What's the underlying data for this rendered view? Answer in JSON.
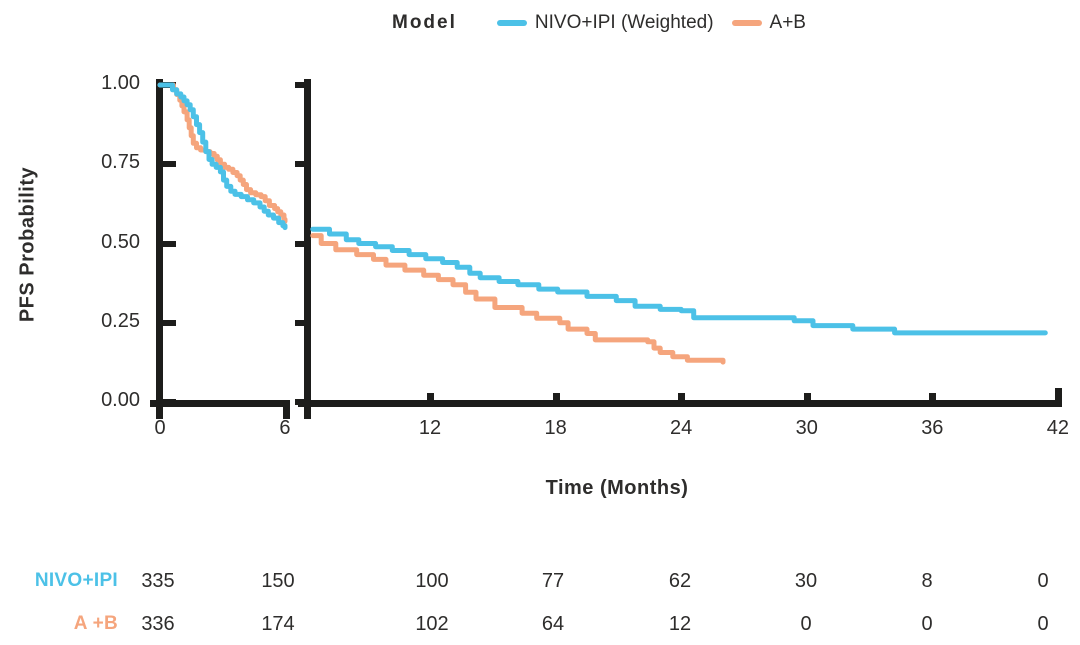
{
  "figure": {
    "legend": {
      "title": "Model",
      "items": [
        {
          "key": "nivo-ipi-weighted",
          "label": "NIVO+IPI (Weighted)",
          "color": "#4cc1e7"
        },
        {
          "key": "a-b",
          "label": "A+B",
          "color": "#f5a57d"
        }
      ]
    },
    "y_axis_title": "PFS Probability",
    "x_axis_title": "Time (Months)"
  },
  "chart_data": {
    "type": "line",
    "subtype": "kaplan-meier step curves with broken x axis",
    "title": "",
    "xlabel": "Time (Months)",
    "ylabel": "PFS Probability",
    "ylim": [
      0,
      1
    ],
    "y_ticks": [
      "1.00",
      "0.75",
      "0.50",
      "0.25",
      "0.00"
    ],
    "x_break_between_months": [
      6,
      6.4
    ],
    "x_ticks_panel1": [
      0,
      6
    ],
    "x_ticks_panel2": [
      12,
      18,
      24,
      30,
      36,
      42
    ],
    "grid": false,
    "legend_position": "top-center",
    "series": [
      {
        "name": "NIVO+IPI (Weighted)",
        "key": "nivo-ipi-weighted",
        "color": "#4cc1e7",
        "panel1": [
          [
            0,
            1.0
          ],
          [
            0.45,
            1.0
          ],
          [
            0.6,
            0.985
          ],
          [
            0.8,
            0.972
          ],
          [
            1.0,
            0.962
          ],
          [
            1.15,
            0.95
          ],
          [
            1.3,
            0.938
          ],
          [
            1.45,
            0.922
          ],
          [
            1.6,
            0.9
          ],
          [
            1.75,
            0.875
          ],
          [
            1.9,
            0.85
          ],
          [
            2.05,
            0.82
          ],
          [
            2.2,
            0.79
          ],
          [
            2.35,
            0.765
          ],
          [
            2.5,
            0.75
          ],
          [
            2.7,
            0.74
          ],
          [
            2.9,
            0.726
          ],
          [
            3.05,
            0.7
          ],
          [
            3.2,
            0.68
          ],
          [
            3.4,
            0.665
          ],
          [
            3.6,
            0.655
          ],
          [
            3.9,
            0.648
          ],
          [
            4.2,
            0.638
          ],
          [
            4.5,
            0.628
          ],
          [
            4.8,
            0.615
          ],
          [
            5.0,
            0.602
          ],
          [
            5.2,
            0.59
          ],
          [
            5.45,
            0.58
          ],
          [
            5.7,
            0.566
          ],
          [
            5.9,
            0.556
          ],
          [
            6.0,
            0.55
          ]
        ],
        "panel2": [
          [
            6.4,
            0.545
          ],
          [
            7.2,
            0.53
          ],
          [
            8.0,
            0.512
          ],
          [
            8.6,
            0.5
          ],
          [
            9.4,
            0.49
          ],
          [
            10.2,
            0.478
          ],
          [
            11.0,
            0.465
          ],
          [
            11.8,
            0.452
          ],
          [
            12.6,
            0.44
          ],
          [
            13.3,
            0.425
          ],
          [
            13.9,
            0.406
          ],
          [
            14.4,
            0.392
          ],
          [
            15.3,
            0.38
          ],
          [
            16.2,
            0.37
          ],
          [
            17.2,
            0.356
          ],
          [
            18.1,
            0.347
          ],
          [
            19.5,
            0.333
          ],
          [
            20.9,
            0.32
          ],
          [
            21.8,
            0.302
          ],
          [
            23.0,
            0.292
          ],
          [
            24.0,
            0.288
          ],
          [
            24.6,
            0.266
          ],
          [
            29.4,
            0.256
          ],
          [
            30.3,
            0.241
          ],
          [
            32.2,
            0.23
          ],
          [
            34.2,
            0.218
          ],
          [
            41.4,
            0.218
          ]
        ]
      },
      {
        "name": "A+B",
        "key": "a-b",
        "color": "#f5a57d",
        "panel1": [
          [
            0,
            1.0
          ],
          [
            0.5,
            1.0
          ],
          [
            0.65,
            0.985
          ],
          [
            0.8,
            0.97
          ],
          [
            0.95,
            0.952
          ],
          [
            1.05,
            0.934
          ],
          [
            1.15,
            0.915
          ],
          [
            1.3,
            0.89
          ],
          [
            1.4,
            0.865
          ],
          [
            1.5,
            0.84
          ],
          [
            1.6,
            0.816
          ],
          [
            1.75,
            0.802
          ],
          [
            1.95,
            0.795
          ],
          [
            2.2,
            0.79
          ],
          [
            2.4,
            0.784
          ],
          [
            2.6,
            0.775
          ],
          [
            2.75,
            0.764
          ],
          [
            2.9,
            0.75
          ],
          [
            3.1,
            0.74
          ],
          [
            3.3,
            0.734
          ],
          [
            3.5,
            0.724
          ],
          [
            3.7,
            0.714
          ],
          [
            3.85,
            0.7
          ],
          [
            4.0,
            0.686
          ],
          [
            4.15,
            0.67
          ],
          [
            4.35,
            0.66
          ],
          [
            4.6,
            0.654
          ],
          [
            4.85,
            0.648
          ],
          [
            5.05,
            0.635
          ],
          [
            5.25,
            0.62
          ],
          [
            5.5,
            0.61
          ],
          [
            5.65,
            0.6
          ],
          [
            5.8,
            0.59
          ],
          [
            5.95,
            0.576
          ],
          [
            6.0,
            0.57
          ]
        ],
        "panel2": [
          [
            6.4,
            0.525
          ],
          [
            6.8,
            0.5
          ],
          [
            7.5,
            0.48
          ],
          [
            8.5,
            0.465
          ],
          [
            9.3,
            0.45
          ],
          [
            9.9,
            0.432
          ],
          [
            10.8,
            0.416
          ],
          [
            11.7,
            0.4
          ],
          [
            12.4,
            0.386
          ],
          [
            13.1,
            0.37
          ],
          [
            13.7,
            0.346
          ],
          [
            14.2,
            0.325
          ],
          [
            15.1,
            0.298
          ],
          [
            16.4,
            0.28
          ],
          [
            17.1,
            0.264
          ],
          [
            18.2,
            0.25
          ],
          [
            18.6,
            0.23
          ],
          [
            19.5,
            0.216
          ],
          [
            19.9,
            0.196
          ],
          [
            22.4,
            0.19
          ],
          [
            22.7,
            0.17
          ],
          [
            23.0,
            0.156
          ],
          [
            23.6,
            0.143
          ],
          [
            24.3,
            0.132
          ],
          [
            26.0,
            0.126
          ]
        ]
      }
    ]
  },
  "risk_table": {
    "columns_months": [
      0,
      6,
      12,
      18,
      24,
      30,
      36,
      42
    ],
    "rows": [
      {
        "label": "NIVO+IPI",
        "key": "nivo-ipi",
        "color": "#4cc1e7",
        "values": [
          335,
          150,
          100,
          77,
          62,
          30,
          8,
          0
        ]
      },
      {
        "label": "A +B",
        "key": "a-b",
        "color": "#f5a57d",
        "values": [
          336,
          174,
          102,
          64,
          12,
          0,
          0,
          0
        ]
      }
    ]
  }
}
